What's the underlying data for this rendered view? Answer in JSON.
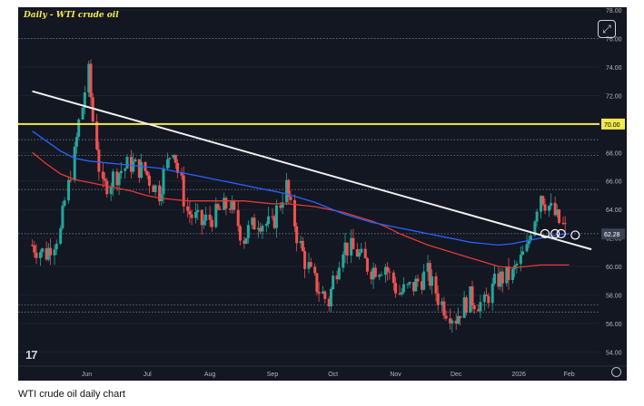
{
  "caption": "WTI crude oil daily chart",
  "chart_data": {
    "type": "candlestick",
    "title": "Daily - WTI crude oil",
    "x_ticks": [
      "Jun",
      "Jul",
      "Aug",
      "Sep",
      "Oct",
      "Nov",
      "Dec",
      "2026",
      "Feb"
    ],
    "y_ticks": [
      54,
      56,
      58,
      60,
      62,
      64,
      66,
      68,
      70,
      72,
      74,
      76,
      78
    ],
    "y_tick_labels": [
      "54.00",
      "56.00",
      "58.00",
      "60.00",
      "62.00",
      "64.00",
      "66.00",
      "68.00",
      "70.00",
      "72.00",
      "74.00",
      "76.00",
      "78.00"
    ],
    "ylim": [
      53,
      78.2
    ],
    "dates": [
      "2025-05-19",
      "2025-05-26",
      "2025-06-02",
      "2025-06-09",
      "2025-06-16",
      "2025-06-23",
      "2025-06-30",
      "2025-07-07",
      "2025-07-14",
      "2025-07-21",
      "2025-07-28",
      "2025-08-04",
      "2025-08-11",
      "2025-08-18",
      "2025-08-25",
      "2025-09-01",
      "2025-09-08",
      "2025-09-15",
      "2025-09-22",
      "2025-09-29",
      "2025-10-06",
      "2025-10-13",
      "2025-10-20",
      "2025-10-27",
      "2025-11-03",
      "2025-11-10",
      "2025-11-17",
      "2025-11-24",
      "2025-12-01",
      "2025-12-08",
      "2025-12-15",
      "2025-12-22",
      "2025-12-29",
      "2026-01-05",
      "2026-01-12",
      "2026-01-19",
      "2026-01-26",
      "2026-02-02",
      "2026-02-09"
    ],
    "closes": [
      61.5,
      60.9,
      62.4,
      67.8,
      73.5,
      65.4,
      66.5,
      67.2,
      66.7,
      65.2,
      68.5,
      63.9,
      63.0,
      63.6,
      64.4,
      62.0,
      63.3,
      62.8,
      65.6,
      61.4,
      58.9,
      57.5,
      61.5,
      61.0,
      59.8,
      60.1,
      58.1,
      58.6,
      59.5,
      57.4,
      56.4,
      57.8,
      57.3,
      59.1,
      59.4,
      61.1,
      65.2,
      63.6,
      62.3
    ],
    "ma_blue": [
      69.5,
      68.8,
      68.1,
      67.6,
      67.4,
      67.3,
      67.2,
      67.1,
      67.0,
      66.9,
      66.7,
      66.5,
      66.3,
      66.1,
      65.9,
      65.7,
      65.5,
      65.3,
      65.1,
      64.8,
      64.5,
      64.1,
      63.7,
      63.4,
      63.1,
      62.9,
      62.7,
      62.5,
      62.3,
      62.1,
      61.9,
      61.7,
      61.6,
      61.5,
      61.6,
      61.8,
      62.0,
      62.2,
      62.3
    ],
    "ma_red": [
      68.0,
      67.2,
      66.5,
      66.1,
      65.9,
      65.7,
      65.5,
      65.3,
      65.0,
      64.8,
      64.7,
      64.6,
      64.6,
      64.6,
      64.6,
      64.6,
      64.5,
      64.4,
      64.4,
      64.3,
      64.2,
      64.0,
      63.8,
      63.5,
      63.2,
      62.8,
      62.3,
      61.9,
      61.5,
      61.2,
      60.9,
      60.6,
      60.3,
      60.0,
      59.9,
      60.0,
      60.1,
      60.1,
      60.1
    ],
    "trendline": {
      "start": {
        "date": "2025-05-19",
        "value": 72.3
      },
      "end": {
        "date": "2026-02-20",
        "value": 61.2
      }
    },
    "horizontal_level": 70.0,
    "price_tags": [
      {
        "value": 70.0,
        "label": "70.00"
      },
      {
        "value": 62.28,
        "label": "62.28"
      }
    ],
    "dotted_levels": [
      76.0,
      68.9,
      67.8,
      65.4,
      62.3,
      57.3,
      56.8
    ],
    "circle_markers": [
      {
        "date": "2026-01-28",
        "value": 62.3
      },
      {
        "date": "2026-02-02",
        "value": 62.3
      },
      {
        "date": "2026-02-05",
        "value": 62.3
      },
      {
        "date": "2026-02-12",
        "value": 62.2
      }
    ],
    "colors": {
      "up": "#26a69a",
      "down": "#ef5350",
      "ma_blue": "#2962ff",
      "ma_red": "#e53935",
      "trendline": "#f0f0f0",
      "level": "#f2e94e",
      "background": "#131722"
    }
  }
}
